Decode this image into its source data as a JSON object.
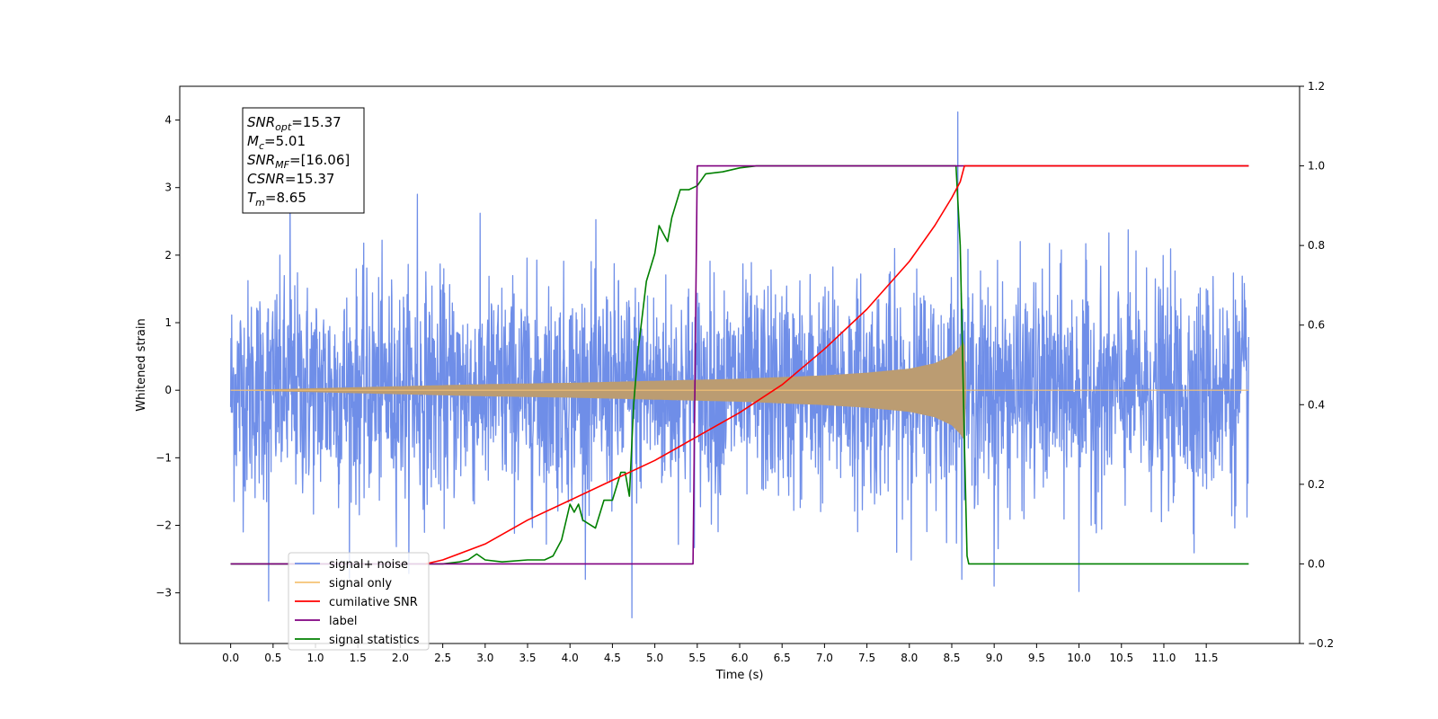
{
  "chart_data": {
    "type": "line",
    "xlabel": "Time (s)",
    "ylabel": "Whitened strain",
    "xlim": [
      -0.6,
      12.6
    ],
    "ylim": [
      -3.75,
      4.5
    ],
    "y2lim": [
      -0.2,
      1.2
    ],
    "xticks": [
      0.0,
      0.5,
      1.0,
      1.5,
      2.0,
      2.5,
      3.0,
      3.5,
      4.0,
      4.5,
      5.0,
      5.5,
      6.0,
      6.5,
      7.0,
      7.5,
      8.0,
      8.5,
      9.0,
      9.5,
      10.0,
      10.5,
      11.0,
      11.5
    ],
    "xtick_labels": [
      "0.0",
      "0.5",
      "1.0",
      "1.5",
      "2.0",
      "2.5",
      "3.0",
      "3.5",
      "4.0",
      "4.5",
      "5.0",
      "5.5",
      "6.0",
      "6.5",
      "7.0",
      "7.5",
      "8.0",
      "8.5",
      "9.0",
      "9.5",
      "10.0",
      "10.5",
      "11.0",
      "11.5"
    ],
    "yticks": [
      -3,
      -2,
      -1,
      0,
      1,
      2,
      3,
      4
    ],
    "ytick_labels": [
      "−3",
      "−2",
      "−1",
      "0",
      "1",
      "2",
      "3",
      "4"
    ],
    "y2ticks": [
      -0.2,
      0.0,
      0.2,
      0.4,
      0.6,
      0.8,
      1.0,
      1.2
    ],
    "y2tick_labels": [
      "−0.2",
      "0.0",
      "0.2",
      "0.4",
      "0.6",
      "0.8",
      "1.0",
      "1.2"
    ],
    "grid": false,
    "legend_position": "lower-left",
    "annotation": {
      "lines": [
        {
          "base": "SNR",
          "sub": "opt",
          "rest": "=15.37"
        },
        {
          "base": "M",
          "sub": "c",
          "rest": "=5.01"
        },
        {
          "base": "SNR",
          "sub": "MF",
          "rest": "=[16.06]"
        },
        {
          "base": "CSNR",
          "sub": "",
          "rest": "=15.37"
        },
        {
          "base": "T",
          "sub": "m",
          "rest": "=8.65"
        }
      ]
    },
    "noise": {
      "x_start": 0.0,
      "x_end": 12.0,
      "std": 0.8,
      "notable_spikes": [
        {
          "x": 8.57,
          "y": 4.12
        },
        {
          "x": 4.73,
          "y": -3.37
        },
        {
          "x": 0.45,
          "y": -3.12
        },
        {
          "x": 0.7,
          "y": 2.95
        },
        {
          "x": 2.2,
          "y": 2.9
        },
        {
          "x": 9.0,
          "y": -2.9
        },
        {
          "x": 10.0,
          "y": -2.98
        }
      ]
    },
    "chirp_envelope": {
      "t_merge": 8.65,
      "points": [
        [
          0.0,
          0.0
        ],
        [
          1.0,
          0.03
        ],
        [
          2.0,
          0.06
        ],
        [
          3.0,
          0.09
        ],
        [
          4.0,
          0.11
        ],
        [
          5.0,
          0.14
        ],
        [
          6.0,
          0.17
        ],
        [
          7.0,
          0.22
        ],
        [
          7.5,
          0.26
        ],
        [
          8.0,
          0.32
        ],
        [
          8.3,
          0.4
        ],
        [
          8.5,
          0.52
        ],
        [
          8.6,
          0.65
        ],
        [
          8.65,
          0.75
        ],
        [
          8.67,
          0.0
        ]
      ]
    },
    "series": [
      {
        "name": "signal+ noise",
        "color": "#6f8ee8",
        "axis": "left"
      },
      {
        "name": "signal only",
        "color": "#f5c274",
        "axis": "left"
      },
      {
        "name": "cumilative SNR",
        "color": "#ff0000",
        "axis": "right",
        "x": [
          2.3,
          2.5,
          3.0,
          3.5,
          4.0,
          4.5,
          5.0,
          5.5,
          6.0,
          6.5,
          7.0,
          7.5,
          8.0,
          8.3,
          8.5,
          8.6,
          8.65,
          8.68,
          12.0
        ],
        "y": [
          0.0,
          0.01,
          0.05,
          0.11,
          0.16,
          0.21,
          0.26,
          0.32,
          0.38,
          0.45,
          0.54,
          0.64,
          0.76,
          0.85,
          0.92,
          0.96,
          1.0,
          1.0,
          1.0
        ]
      },
      {
        "name": "label",
        "color": "#800080",
        "axis": "right",
        "x": [
          0.0,
          5.45,
          5.5,
          12.0
        ],
        "y": [
          0.0,
          0.0,
          1.0,
          1.0
        ]
      },
      {
        "name": "signal statistics",
        "color": "#008000",
        "axis": "right",
        "x": [
          0.0,
          2.5,
          2.7,
          2.8,
          2.9,
          3.0,
          3.2,
          3.5,
          3.7,
          3.8,
          3.9,
          4.0,
          4.05,
          4.1,
          4.15,
          4.3,
          4.4,
          4.5,
          4.6,
          4.65,
          4.7,
          4.75,
          4.8,
          4.9,
          5.0,
          5.05,
          5.1,
          5.15,
          5.2,
          5.3,
          5.4,
          5.5,
          5.6,
          5.8,
          6.0,
          6.2,
          7.0,
          8.0,
          8.5,
          8.55,
          8.6,
          8.65,
          8.68,
          8.7,
          12.0
        ],
        "y": [
          0.0,
          0.0,
          0.005,
          0.01,
          0.025,
          0.01,
          0.005,
          0.01,
          0.01,
          0.02,
          0.06,
          0.15,
          0.13,
          0.15,
          0.11,
          0.09,
          0.16,
          0.16,
          0.23,
          0.23,
          0.17,
          0.4,
          0.53,
          0.71,
          0.78,
          0.85,
          0.83,
          0.81,
          0.87,
          0.94,
          0.94,
          0.95,
          0.98,
          0.985,
          0.995,
          1.0,
          1.0,
          1.0,
          1.0,
          1.0,
          0.8,
          0.3,
          0.02,
          0.0,
          0.0
        ]
      }
    ]
  },
  "legend": {
    "items": [
      {
        "label": "signal+ noise",
        "color": "#6f8ee8"
      },
      {
        "label": "signal only",
        "color": "#f5c274"
      },
      {
        "label": "cumilative SNR",
        "color": "#ff0000"
      },
      {
        "label": "label",
        "color": "#800080"
      },
      {
        "label": "signal statistics",
        "color": "#008000"
      }
    ]
  }
}
